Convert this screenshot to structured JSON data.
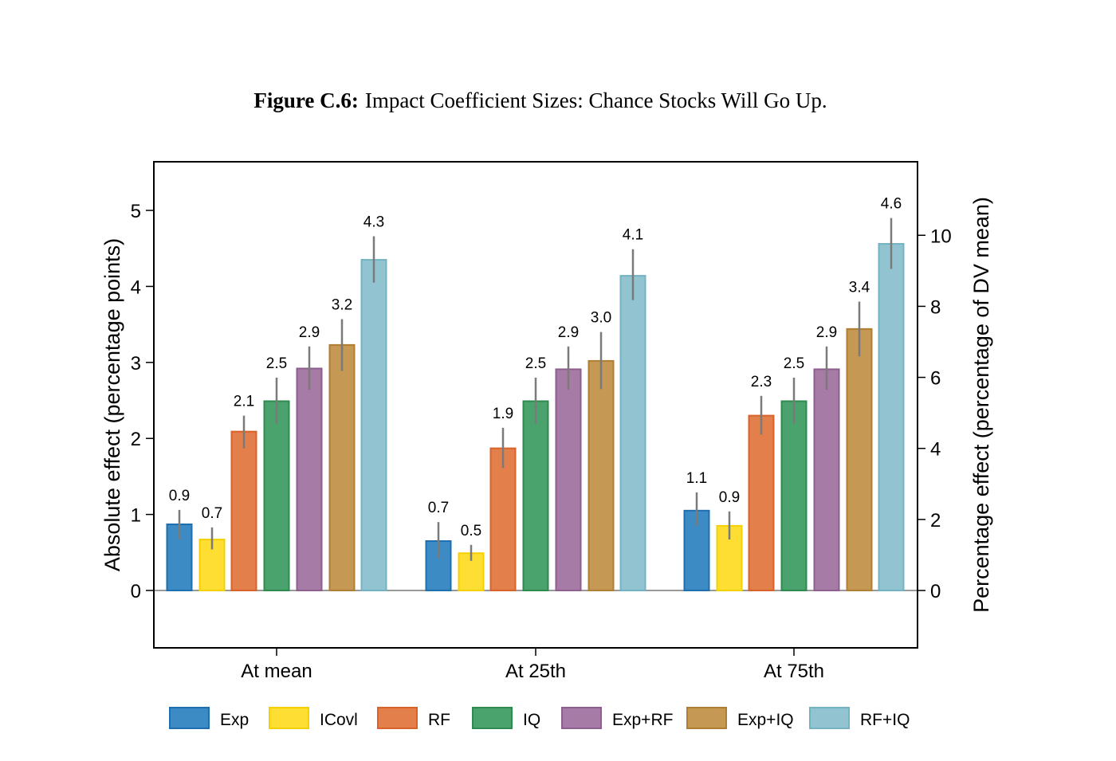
{
  "figure": {
    "label": "Figure C.6:",
    "caption": "Impact Coefficient Sizes: Chance Stocks Will Go Up."
  },
  "chart_data": {
    "type": "bar",
    "categories": [
      "At mean",
      "At 25th",
      "At 75th"
    ],
    "ylabel": "Absolute effect (percentage points)",
    "ylabel_right": "Percentage effect (percentage of DV mean)",
    "ylim": [
      -0.755,
      5.64
    ],
    "yticks": [
      0,
      1,
      2,
      3,
      4,
      5
    ],
    "ylim_right": [
      -1.615,
      12.07
    ],
    "yticks_right": [
      0,
      2,
      4,
      6,
      8,
      10
    ],
    "grid": false,
    "legend_position": "bottom",
    "series": [
      {
        "name": "Exp",
        "color": "#3d8bc4",
        "edge": "#1f6fb0",
        "values": [
          0.87,
          0.65,
          1.05
        ],
        "labels": [
          "0.9",
          "0.7",
          "1.1"
        ],
        "ci_low": [
          0.67,
          0.42,
          0.85
        ],
        "ci_high": [
          1.06,
          0.9,
          1.29
        ]
      },
      {
        "name": "ICovl",
        "color": "#fede32",
        "edge": "#f5d000",
        "values": [
          0.67,
          0.49,
          0.85
        ],
        "labels": [
          "0.7",
          "0.5",
          "0.9"
        ],
        "ci_low": [
          0.54,
          0.39,
          0.67
        ],
        "ci_high": [
          0.83,
          0.6,
          1.04
        ]
      },
      {
        "name": "RF",
        "color": "#e27f4b",
        "edge": "#d9622b",
        "values": [
          2.09,
          1.87,
          2.3
        ],
        "labels": [
          "2.1",
          "1.9",
          "2.3"
        ],
        "ci_low": [
          1.87,
          1.61,
          2.05
        ],
        "ci_high": [
          2.3,
          2.14,
          2.56
        ]
      },
      {
        "name": "IQ",
        "color": "#4aa36c",
        "edge": "#2e8b50",
        "values": [
          2.49,
          2.49,
          2.49
        ],
        "labels": [
          "2.5",
          "2.5",
          "2.5"
        ],
        "ci_low": [
          2.19,
          2.19,
          2.19
        ],
        "ci_high": [
          2.8,
          2.8,
          2.8
        ]
      },
      {
        "name": "Exp+RF",
        "color": "#a67ba5",
        "edge": "#8d5f8e",
        "values": [
          2.92,
          2.91,
          2.91
        ],
        "labels": [
          "2.9",
          "2.9",
          "2.9"
        ],
        "ci_low": [
          2.64,
          2.64,
          2.64
        ],
        "ci_high": [
          3.21,
          3.21,
          3.21
        ]
      },
      {
        "name": "Exp+IQ",
        "color": "#c59854",
        "edge": "#b07e33",
        "values": [
          3.23,
          3.02,
          3.44
        ],
        "labels": [
          "3.2",
          "3.0",
          "3.4"
        ],
        "ci_low": [
          2.89,
          2.65,
          3.08
        ],
        "ci_high": [
          3.57,
          3.4,
          3.8
        ]
      },
      {
        "name": "RF+IQ",
        "color": "#91c4d0",
        "edge": "#74b3c4",
        "values": [
          4.35,
          4.14,
          4.56
        ],
        "labels": [
          "4.3",
          "4.1",
          "4.6"
        ],
        "ci_low": [
          4.05,
          3.82,
          4.23
        ],
        "ci_high": [
          4.66,
          4.49,
          4.9
        ]
      }
    ]
  }
}
